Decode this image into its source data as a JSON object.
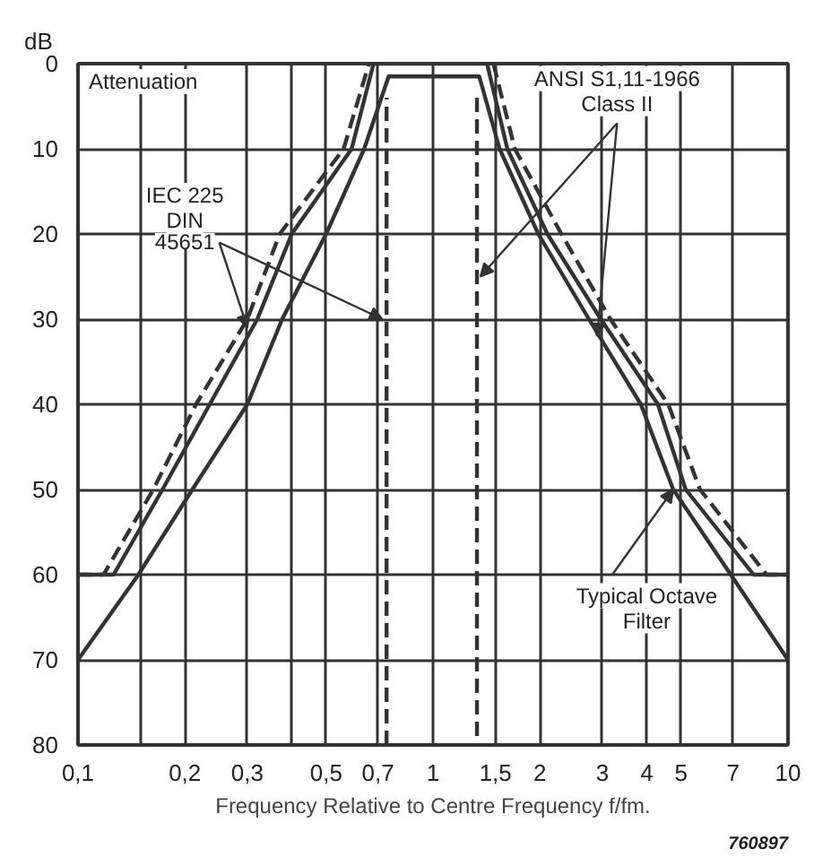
{
  "chart_data": {
    "type": "line",
    "xlabel": "Frequency Relative to Centre Frequency f/fm.",
    "ylabel": "dB",
    "log": "x",
    "grid": true,
    "line_style": "solid",
    "marker": "none",
    "xlim": [
      0.1,
      10
    ],
    "ylim": [
      80,
      0
    ],
    "xticks": [
      {
        "value": 0.1,
        "label": "0,1"
      },
      {
        "value": 0.15,
        "label": null
      },
      {
        "value": 0.2,
        "label": "0,2"
      },
      {
        "value": 0.3,
        "label": "0,3"
      },
      {
        "value": 0.4,
        "label": null
      },
      {
        "value": 0.5,
        "label": "0,5"
      },
      {
        "value": 0.7,
        "label": "0,7"
      },
      1,
      {
        "value": 1.5,
        "label": "1,5"
      },
      2,
      3,
      4,
      5,
      7,
      10
    ],
    "yticks": [
      0,
      10,
      20,
      30,
      40,
      50,
      60,
      70,
      80
    ],
    "series": [
      {
        "color": "#333333",
        "line_style": "dashed",
        "x": [
          0.1,
          0.118,
          0.163,
          0.215,
          0.3,
          0.37,
          0.56,
          0.66,
          1.0,
          1.48,
          1.7,
          2.3,
          3.16,
          4.6,
          5.65,
          8.7,
          10
        ],
        "values": [
          60,
          60,
          50,
          40,
          30,
          20,
          10,
          0,
          null,
          0,
          10,
          20,
          30,
          40,
          50,
          60,
          60
        ]
      },
      {
        "color": "#333333",
        "x": [
          0.1,
          0.126,
          0.173,
          0.235,
          0.32,
          0.4,
          0.59,
          0.68,
          1.42,
          1.62,
          2.1,
          2.97,
          4.3,
          5.15,
          8.0,
          10
        ],
        "values": [
          60,
          60,
          50,
          40,
          30,
          20,
          10,
          0,
          0,
          10,
          20,
          30,
          40,
          50,
          60,
          60
        ]
      },
      {
        "color": "#333333",
        "x": [
          0.1,
          0.148,
          0.21,
          0.3,
          0.376,
          0.5,
          0.64,
          0.75,
          1.35,
          1.54,
          1.98,
          2.75,
          3.85,
          4.75,
          6.9,
          10
        ],
        "values": [
          70,
          60,
          50,
          40,
          30,
          20,
          10,
          1.5,
          1.5,
          10,
          20,
          30,
          40,
          50,
          60,
          70
        ]
      },
      {
        "color": "#333333",
        "line_style": "dashed",
        "x": [
          0.74,
          0.74,
          1.0,
          1.33,
          1.33
        ],
        "values": [
          80,
          4,
          null,
          4,
          80
        ]
      }
    ],
    "annotations": [
      "Attenuation",
      {
        "text": "IEC 225\nDIN\n45651",
        "x": 0.72,
        "y": 30
      },
      {
        "text": "ANSI S1,11-1966\nClass II",
        "x": 1.36,
        "y": 25
      },
      {
        "text": "Typical Octave\nFilter",
        "x": 4.75,
        "y": 50
      },
      "760897"
    ]
  }
}
